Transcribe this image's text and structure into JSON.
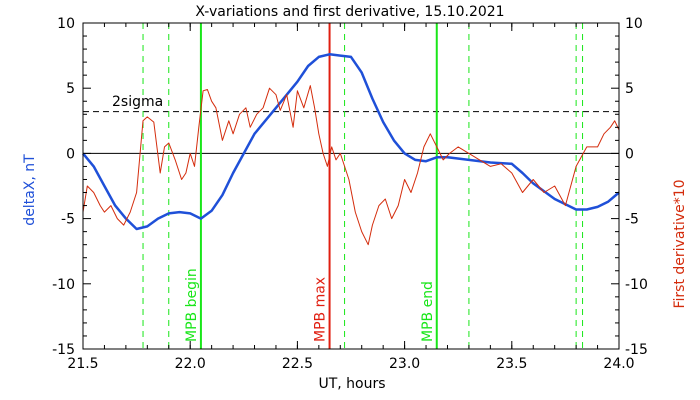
{
  "chart_data": {
    "type": "line",
    "title": "X-variations and first derivative, 15.10.2021",
    "xlabel": "UT, hours",
    "ylabel_left": "deltaX, nT",
    "ylabel_right": "First derivative*10",
    "xlim": [
      21.5,
      24.0
    ],
    "ylim_left": [
      -15,
      10
    ],
    "ylim_right": [
      -15,
      10
    ],
    "x_ticks": [
      "21.5",
      "22.0",
      "22.5",
      "23.0",
      "23.5",
      "24.0"
    ],
    "y_ticks_left": [
      "-15",
      "-10",
      "-5",
      "0",
      "5",
      "10"
    ],
    "y_ticks_right": [
      "-15",
      "-10",
      "-5",
      "0",
      "5",
      "10"
    ],
    "colors": {
      "deltaX": "#1f50d8",
      "derivative": "#d42c0c",
      "mpb_max": "#e01e10",
      "mpb_bounds": "#19e619",
      "dashed_green": "#19e619"
    },
    "sigma_label": "2sigma",
    "sigma_level": 3.2,
    "zero_level": 0,
    "series": [
      {
        "role": "deltaX",
        "axis": "left",
        "x": [
          21.5,
          21.55,
          21.6,
          21.65,
          21.7,
          21.75,
          21.8,
          21.85,
          21.9,
          21.95,
          22.0,
          22.05,
          22.1,
          22.15,
          22.2,
          22.3,
          22.4,
          22.5,
          22.55,
          22.6,
          22.65,
          22.7,
          22.75,
          22.8,
          22.85,
          22.9,
          22.95,
          23.0,
          23.05,
          23.1,
          23.15,
          23.2,
          23.3,
          23.4,
          23.5,
          23.55,
          23.6,
          23.7,
          23.8,
          23.85,
          23.9,
          23.95,
          24.0
        ],
        "values": [
          0.0,
          -1.0,
          -2.5,
          -4.0,
          -5.0,
          -5.8,
          -5.6,
          -5.0,
          -4.6,
          -4.5,
          -4.6,
          -5.0,
          -4.4,
          -3.2,
          -1.5,
          1.5,
          3.5,
          5.5,
          6.7,
          7.4,
          7.6,
          7.5,
          7.4,
          6.2,
          4.2,
          2.4,
          1.0,
          0.0,
          -0.5,
          -0.6,
          -0.3,
          -0.3,
          -0.5,
          -0.7,
          -0.8,
          -1.5,
          -2.3,
          -3.5,
          -4.3,
          -4.3,
          -4.1,
          -3.7,
          -3.0
        ]
      },
      {
        "role": "derivative",
        "axis": "right",
        "x": [
          21.5,
          21.52,
          21.55,
          21.58,
          21.6,
          21.63,
          21.66,
          21.69,
          21.72,
          21.75,
          21.78,
          21.8,
          21.83,
          21.86,
          21.88,
          21.9,
          21.93,
          21.96,
          21.98,
          22.0,
          22.02,
          22.04,
          22.06,
          22.08,
          22.1,
          22.12,
          22.15,
          22.18,
          22.2,
          22.23,
          22.26,
          22.28,
          22.31,
          22.34,
          22.37,
          22.4,
          22.42,
          22.45,
          22.48,
          22.5,
          22.53,
          22.56,
          22.58,
          22.6,
          22.62,
          22.64,
          22.66,
          22.68,
          22.7,
          22.72,
          22.74,
          22.77,
          22.8,
          22.83,
          22.85,
          22.88,
          22.91,
          22.94,
          22.97,
          23.0,
          23.03,
          23.06,
          23.09,
          23.12,
          23.15,
          23.18,
          23.21,
          23.25,
          23.3,
          23.35,
          23.4,
          23.45,
          23.5,
          23.55,
          23.6,
          23.65,
          23.7,
          23.75,
          23.8,
          23.85,
          23.9,
          23.93,
          23.96,
          23.98,
          24.0
        ],
        "values": [
          -4.5,
          -2.5,
          -3.0,
          -4.0,
          -4.5,
          -4.0,
          -5.0,
          -5.5,
          -4.5,
          -3.0,
          2.5,
          2.8,
          2.4,
          -1.5,
          0.5,
          0.8,
          -0.5,
          -2.0,
          -1.5,
          0.0,
          -1.0,
          2.0,
          4.8,
          4.9,
          4.0,
          3.5,
          1.0,
          2.5,
          1.5,
          3.0,
          3.5,
          2.0,
          3.0,
          3.5,
          5.0,
          4.5,
          3.3,
          4.5,
          2.0,
          4.8,
          3.5,
          5.2,
          3.5,
          1.5,
          0.0,
          -1.0,
          0.5,
          -0.5,
          0.0,
          -1.0,
          -2.0,
          -4.5,
          -6.0,
          -7.0,
          -5.5,
          -4.0,
          -3.5,
          -5.0,
          -4.0,
          -2.0,
          -3.0,
          -1.5,
          0.5,
          1.5,
          0.5,
          -0.5,
          0.0,
          0.5,
          0.0,
          -0.5,
          -1.0,
          -0.8,
          -1.5,
          -3.0,
          -2.0,
          -3.0,
          -2.5,
          -4.0,
          -1.0,
          0.5,
          0.5,
          1.5,
          2.0,
          2.5,
          1.8
        ]
      }
    ],
    "vlines_solid": [
      {
        "x": 22.05,
        "label": "MPB begin",
        "color_key": "mpb_bounds"
      },
      {
        "x": 22.65,
        "label": "MPB max",
        "color_key": "mpb_max"
      },
      {
        "x": 23.15,
        "label": "MPB end",
        "color_key": "mpb_bounds"
      }
    ],
    "vlines_dashed": [
      21.78,
      21.9,
      22.72,
      23.3,
      23.8,
      23.83
    ]
  }
}
